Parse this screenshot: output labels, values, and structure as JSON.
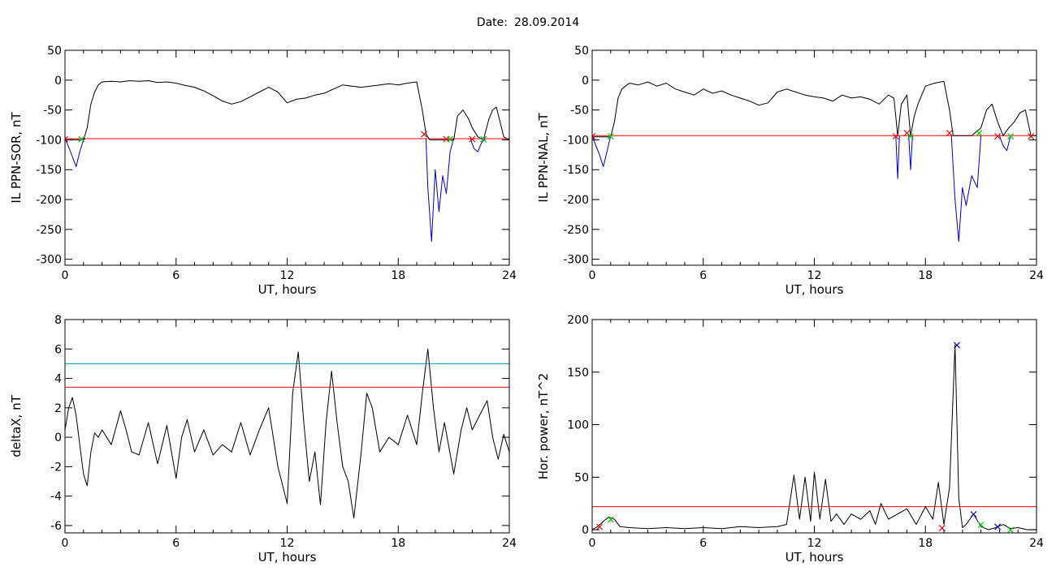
{
  "page": {
    "date_label": "Date:",
    "date_value": "28.09.2014"
  },
  "chart_data": [
    {
      "id": "sor",
      "type": "line",
      "xlabel": "UT, hours",
      "ylabel": "IL PPN-SOR, nT",
      "xlim": [
        0,
        24
      ],
      "ylim": [
        -310,
        50
      ],
      "xticks": [
        0,
        6,
        12,
        18,
        24
      ],
      "yticks": [
        50,
        0,
        -50,
        -100,
        -150,
        -200,
        -250,
        -300
      ],
      "hlines": [
        {
          "y": -98,
          "color": "#ff0000"
        }
      ],
      "series": [
        {
          "color": "#000000",
          "x": [
            0.0,
            0.2,
            0.4,
            0.6,
            0.8,
            1.0,
            1.2,
            1.4,
            1.6,
            1.8,
            2.0,
            2.5,
            3.0,
            3.5,
            4.0,
            4.5,
            5.0,
            5.5,
            6.0,
            6.5,
            7.0,
            7.5,
            8.0,
            8.5,
            9.0,
            9.5,
            10.0,
            10.5,
            11.0,
            11.5,
            12.0,
            12.5,
            13.0,
            13.5,
            14.0,
            14.5,
            15.0,
            15.5,
            16.0,
            16.5,
            17.0,
            17.5,
            18.0,
            18.5,
            19.0,
            19.3,
            19.5,
            19.7,
            20.0,
            20.4,
            20.8,
            21.0,
            21.2,
            21.5,
            21.8,
            22.0,
            22.3,
            22.6,
            22.9,
            23.1,
            23.3,
            23.5,
            23.7,
            24.0
          ],
          "y": [
            -100,
            -100,
            -100,
            -100,
            -100,
            -100,
            -80,
            -40,
            -20,
            -8,
            -3,
            -2,
            -3,
            -1,
            -2,
            -1,
            -4,
            -3,
            -5,
            -9,
            -12,
            -18,
            -26,
            -35,
            -40,
            -36,
            -28,
            -20,
            -12,
            -20,
            -38,
            -32,
            -30,
            -25,
            -22,
            -15,
            -8,
            -10,
            -12,
            -10,
            -8,
            -6,
            -8,
            -5,
            -3,
            -50,
            -90,
            -100,
            -100,
            -100,
            -100,
            -100,
            -60,
            -50,
            -65,
            -80,
            -95,
            -100,
            -65,
            -50,
            -45,
            -70,
            -95,
            -100
          ]
        },
        {
          "color": "#0000cc",
          "x": [
            0.0,
            0.2,
            0.4,
            0.6,
            0.8,
            1.0,
            1.1
          ],
          "y": [
            -98,
            -112,
            -128,
            -145,
            -120,
            -100,
            -98
          ]
        },
        {
          "color": "#0000cc",
          "x": [
            19.5,
            19.6,
            19.8,
            20.0,
            20.2,
            20.4,
            20.6,
            20.8,
            21.0
          ],
          "y": [
            -98,
            -180,
            -270,
            -150,
            -220,
            -160,
            -190,
            -120,
            -98
          ]
        },
        {
          "color": "#0000cc",
          "x": [
            21.9,
            22.1,
            22.3,
            22.5,
            22.7
          ],
          "y": [
            -98,
            -115,
            -120,
            -105,
            -98
          ]
        }
      ],
      "markers": [
        {
          "x": 0.0,
          "y": -98,
          "color": "#ff0000",
          "symbol": "×"
        },
        {
          "x": 0.9,
          "y": -98,
          "color": "#00cc00",
          "symbol": "×"
        },
        {
          "x": 19.4,
          "y": -90,
          "color": "#ff0000",
          "symbol": "×"
        },
        {
          "x": 20.6,
          "y": -98,
          "color": "#ff0000",
          "symbol": "×"
        },
        {
          "x": 20.8,
          "y": -98,
          "color": "#00cc00",
          "symbol": "×"
        },
        {
          "x": 22.0,
          "y": -98,
          "color": "#ff0000",
          "symbol": "×"
        },
        {
          "x": 22.6,
          "y": -98,
          "color": "#00cc00",
          "symbol": "×"
        }
      ]
    },
    {
      "id": "nal",
      "type": "line",
      "xlabel": "UT, hours",
      "ylabel": "IL PPN-NAL, nT",
      "xlim": [
        0,
        24
      ],
      "ylim": [
        -310,
        50
      ],
      "xticks": [
        0,
        6,
        12,
        18,
        24
      ],
      "yticks": [
        50,
        0,
        -50,
        -100,
        -150,
        -200,
        -250,
        -300
      ],
      "hlines": [
        {
          "y": -93,
          "color": "#ff0000"
        }
      ],
      "series": [
        {
          "color": "#000000",
          "x": [
            0.0,
            0.2,
            0.4,
            0.6,
            0.8,
            1.0,
            1.2,
            1.4,
            1.6,
            1.8,
            2.0,
            2.5,
            3.0,
            3.5,
            4.0,
            4.5,
            5.0,
            5.5,
            6.0,
            6.5,
            7.0,
            7.5,
            8.0,
            8.5,
            9.0,
            9.5,
            10.0,
            10.5,
            11.0,
            11.5,
            12.0,
            12.5,
            13.0,
            13.5,
            14.0,
            14.5,
            15.0,
            15.5,
            16.0,
            16.3,
            16.5,
            16.7,
            17.0,
            17.2,
            17.4,
            17.6,
            18.0,
            18.5,
            19.0,
            19.3,
            19.5,
            20.0,
            20.5,
            21.0,
            21.3,
            21.6,
            21.9,
            22.2,
            22.5,
            22.8,
            23.1,
            23.4,
            23.7,
            24.0
          ],
          "y": [
            -95,
            -95,
            -95,
            -95,
            -95,
            -95,
            -70,
            -30,
            -15,
            -10,
            -5,
            -8,
            -3,
            -10,
            -5,
            -15,
            -20,
            -25,
            -15,
            -22,
            -18,
            -25,
            -30,
            -35,
            -42,
            -38,
            -20,
            -15,
            -20,
            -25,
            -28,
            -30,
            -35,
            -25,
            -30,
            -28,
            -32,
            -40,
            -25,
            -30,
            -93,
            -40,
            -25,
            -93,
            -60,
            -40,
            -10,
            -5,
            -2,
            -50,
            -93,
            -93,
            -93,
            -80,
            -50,
            -40,
            -70,
            -93,
            -80,
            -70,
            -55,
            -50,
            -93,
            -93
          ]
        },
        {
          "color": "#0000cc",
          "x": [
            0.0,
            0.2,
            0.4,
            0.6,
            0.8,
            1.0
          ],
          "y": [
            -93,
            -110,
            -125,
            -145,
            -120,
            -93
          ]
        },
        {
          "color": "#0000cc",
          "x": [
            16.4,
            16.5,
            16.6
          ],
          "y": [
            -93,
            -165,
            -93
          ]
        },
        {
          "color": "#0000cc",
          "x": [
            17.1,
            17.2,
            17.3
          ],
          "y": [
            -93,
            -150,
            -93
          ]
        },
        {
          "color": "#0000cc",
          "x": [
            19.4,
            19.6,
            19.8,
            20.0,
            20.2,
            20.5,
            20.8,
            21.0
          ],
          "y": [
            -93,
            -200,
            -270,
            -180,
            -210,
            -160,
            -180,
            -93
          ]
        },
        {
          "color": "#0000cc",
          "x": [
            22.0,
            22.2,
            22.4,
            22.6
          ],
          "y": [
            -93,
            -110,
            -118,
            -93
          ]
        }
      ],
      "markers": [
        {
          "x": 0.0,
          "y": -93,
          "color": "#ff0000",
          "symbol": "×"
        },
        {
          "x": 1.0,
          "y": -93,
          "color": "#00cc00",
          "symbol": "×"
        },
        {
          "x": 16.4,
          "y": -93,
          "color": "#ff0000",
          "symbol": "×"
        },
        {
          "x": 17.0,
          "y": -88,
          "color": "#ff0000",
          "symbol": "×"
        },
        {
          "x": 17.2,
          "y": -93,
          "color": "#00cc00",
          "symbol": "×"
        },
        {
          "x": 19.3,
          "y": -88,
          "color": "#ff0000",
          "symbol": "×"
        },
        {
          "x": 20.9,
          "y": -88,
          "color": "#00cc00",
          "symbol": "×"
        },
        {
          "x": 21.9,
          "y": -93,
          "color": "#ff0000",
          "symbol": "×"
        },
        {
          "x": 22.6,
          "y": -93,
          "color": "#00cc00",
          "symbol": "×"
        },
        {
          "x": 23.7,
          "y": -93,
          "color": "#ff0000",
          "symbol": "×"
        }
      ]
    },
    {
      "id": "deltax",
      "type": "line",
      "xlabel": "UT, hours",
      "ylabel": "deltaX, nT",
      "xlim": [
        0,
        24
      ],
      "ylim": [
        -6.5,
        8
      ],
      "xticks": [
        0,
        6,
        12,
        18,
        24
      ],
      "yticks": [
        8,
        6,
        4,
        2,
        0,
        -2,
        -4,
        -6
      ],
      "hlines": [
        {
          "y": 5.0,
          "color": "#0099aa"
        },
        {
          "y": 3.4,
          "color": "#ff0000"
        }
      ],
      "series": [
        {
          "color": "#000000",
          "x": [
            0.0,
            0.2,
            0.4,
            0.6,
            0.8,
            1.0,
            1.2,
            1.4,
            1.6,
            1.8,
            2.0,
            2.5,
            3.0,
            3.3,
            3.6,
            4.0,
            4.5,
            5.0,
            5.5,
            6.0,
            6.3,
            6.6,
            7.0,
            7.5,
            8.0,
            8.5,
            9.0,
            9.5,
            10.0,
            10.5,
            11.0,
            11.5,
            12.0,
            12.3,
            12.6,
            12.9,
            13.2,
            13.5,
            13.8,
            14.1,
            14.4,
            14.7,
            15.0,
            15.3,
            15.6,
            16.0,
            16.3,
            16.6,
            17.0,
            17.5,
            18.0,
            18.5,
            19.0,
            19.3,
            19.6,
            19.9,
            20.2,
            20.5,
            21.0,
            21.4,
            21.7,
            22.0,
            22.4,
            22.8,
            23.1,
            23.4,
            23.7,
            24.0
          ],
          "y": [
            0.5,
            2.0,
            2.7,
            1.5,
            -0.5,
            -2.5,
            -3.3,
            -1.0,
            0.3,
            0.0,
            0.5,
            -0.5,
            1.8,
            0.5,
            -1.0,
            -1.2,
            1.0,
            -1.8,
            0.8,
            -2.8,
            0.0,
            1.2,
            -1.0,
            0.5,
            -1.2,
            -0.5,
            -1.0,
            1.0,
            -1.2,
            0.5,
            2.0,
            -2.0,
            -4.5,
            3.0,
            5.8,
            1.0,
            -3.0,
            -1.0,
            -4.6,
            1.0,
            4.5,
            1.0,
            -2.0,
            -3.0,
            -5.5,
            -1.0,
            3.0,
            2.0,
            -1.0,
            0.0,
            -0.5,
            1.5,
            -0.5,
            3.0,
            6.0,
            2.0,
            -1.0,
            1.0,
            -2.5,
            0.5,
            2.0,
            0.5,
            1.5,
            2.5,
            0.0,
            -1.5,
            0.2,
            -1.0
          ]
        }
      ],
      "markers": []
    },
    {
      "id": "power",
      "type": "line",
      "xlabel": "UT, hours",
      "ylabel": "Hor. power, nT^2",
      "xlim": [
        0,
        24
      ],
      "ylim": [
        -3,
        200
      ],
      "xticks": [
        0,
        6,
        12,
        18,
        24
      ],
      "yticks": [
        200,
        150,
        100,
        50,
        0
      ],
      "hlines": [
        {
          "y": 22,
          "color": "#ff0000"
        }
      ],
      "series": [
        {
          "color": "#000000",
          "x": [
            0.0,
            0.3,
            0.6,
            0.9,
            1.2,
            1.5,
            2.0,
            3.0,
            4.0,
            5.0,
            6.0,
            7.0,
            8.0,
            9.0,
            10.0,
            10.5,
            10.9,
            11.2,
            11.5,
            11.8,
            12.0,
            12.3,
            12.6,
            12.9,
            13.2,
            13.6,
            14.0,
            14.5,
            15.0,
            15.3,
            15.6,
            16.0,
            16.5,
            17.0,
            17.5,
            18.0,
            18.4,
            18.7,
            19.0,
            19.3,
            19.6,
            19.8,
            20.0,
            20.2,
            20.6,
            21.0,
            21.4,
            21.8,
            22.2,
            22.6,
            23.0,
            23.5,
            24.0
          ],
          "y": [
            0,
            3,
            8,
            12,
            10,
            3,
            2,
            1,
            2,
            1,
            2,
            1,
            3,
            2,
            3,
            5,
            52,
            10,
            50,
            8,
            55,
            10,
            48,
            8,
            15,
            5,
            15,
            10,
            18,
            5,
            25,
            10,
            15,
            20,
            5,
            22,
            10,
            45,
            5,
            40,
            176,
            30,
            2,
            5,
            15,
            3,
            0,
            2,
            5,
            1,
            2,
            0,
            0
          ]
        }
      ],
      "markers": [
        {
          "x": 0.4,
          "y": 3,
          "color": "#ff0000",
          "symbol": "×"
        },
        {
          "x": 1.0,
          "y": 10,
          "color": "#00cc00",
          "symbol": "×"
        },
        {
          "x": 18.9,
          "y": 2,
          "color": "#ff0000",
          "symbol": "×"
        },
        {
          "x": 19.7,
          "y": 176,
          "color": "#0000cc",
          "symbol": "×"
        },
        {
          "x": 20.6,
          "y": 15,
          "color": "#0000cc",
          "symbol": "×"
        },
        {
          "x": 21.0,
          "y": 5,
          "color": "#00cc00",
          "symbol": "×"
        },
        {
          "x": 21.9,
          "y": 3,
          "color": "#0000cc",
          "symbol": "×"
        },
        {
          "x": 22.6,
          "y": 0,
          "color": "#00cc00",
          "symbol": "×"
        }
      ]
    }
  ]
}
